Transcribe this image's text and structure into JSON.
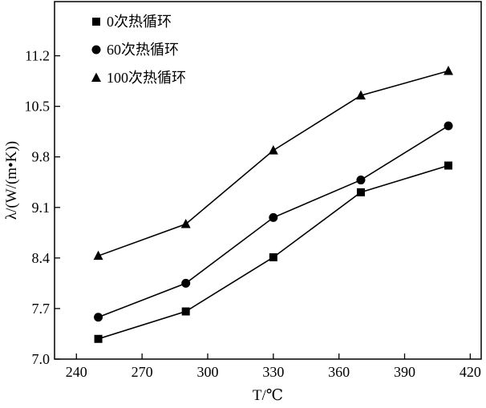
{
  "chart_data": {
    "type": "line",
    "xlabel": "T/℃",
    "ylabel": "λ/(W/(m•K))",
    "xlim": [
      230,
      425
    ],
    "ylim": [
      7.0,
      11.95
    ],
    "xticks": [
      240,
      270,
      300,
      330,
      360,
      390,
      420
    ],
    "yticks": [
      7.0,
      7.7,
      8.4,
      9.1,
      9.8,
      10.5,
      11.2
    ],
    "x": [
      250,
      290,
      330,
      370,
      410
    ],
    "series": [
      {
        "name": "0次热循环",
        "marker": "square",
        "values": [
          7.28,
          7.66,
          8.41,
          9.31,
          9.68
        ]
      },
      {
        "name": "60次热循环",
        "marker": "circle",
        "values": [
          7.58,
          8.05,
          8.96,
          9.48,
          10.23
        ]
      },
      {
        "name": "100次热循环",
        "marker": "triangle",
        "values": [
          8.43,
          8.87,
          9.89,
          10.65,
          10.99
        ]
      }
    ],
    "grid": false,
    "legend": "top-left"
  }
}
